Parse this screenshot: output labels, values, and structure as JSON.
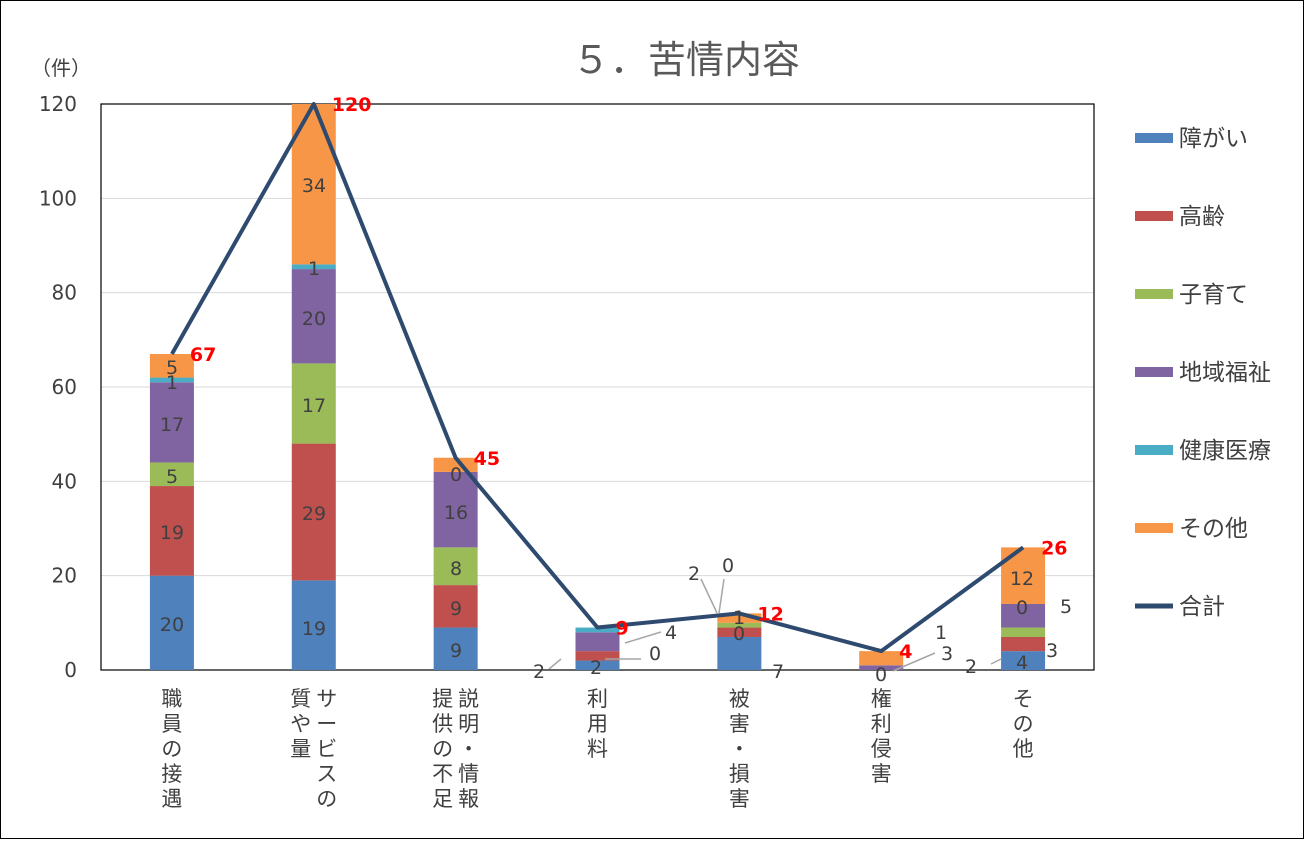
{
  "chart_data": {
    "type": "bar",
    "stacked": true,
    "title": "５．苦情内容",
    "ylabel": "（件）",
    "ylim": [
      0,
      120
    ],
    "yticks": [
      0,
      20,
      40,
      60,
      80,
      100,
      120
    ],
    "grid": true,
    "legend_position": "right",
    "categories": [
      "職員の接遇",
      "サービスの質や量",
      "説明・情報提供の不足",
      "利用料",
      "被害・損害",
      "権利侵害",
      "その他"
    ],
    "category_label_columns": [
      [
        "職員の接遇"
      ],
      [
        "サービスの",
        "質や量"
      ],
      [
        "説明・情報",
        "提供の不足"
      ],
      [
        "利用料"
      ],
      [
        "被害・損害"
      ],
      [
        "権利侵害"
      ],
      [
        "その他"
      ]
    ],
    "series": [
      {
        "name": "障がい",
        "color": "#4f81bd",
        "values": [
          20,
          19,
          9,
          2,
          7,
          0,
          4
        ]
      },
      {
        "name": "高齢",
        "color": "#c0504d",
        "values": [
          19,
          29,
          9,
          2,
          2,
          0,
          3
        ]
      },
      {
        "name": "子育て",
        "color": "#9bbb59",
        "values": [
          5,
          17,
          8,
          0,
          1,
          0,
          2
        ]
      },
      {
        "name": "地域福祉",
        "color": "#8064a2",
        "values": [
          17,
          20,
          16,
          4,
          0,
          1,
          5
        ]
      },
      {
        "name": "健康医療",
        "color": "#4bacc6",
        "values": [
          1,
          1,
          0,
          1,
          0,
          0,
          0
        ]
      },
      {
        "name": "その他",
        "color": "#f79646",
        "values": [
          5,
          34,
          3,
          0,
          2,
          3,
          12
        ]
      }
    ],
    "total": {
      "name": "合計",
      "color": "#2e4a6e",
      "label_color": "#ff0000",
      "values": [
        67,
        120,
        45,
        9,
        12,
        4,
        26
      ]
    },
    "data_labels": [
      {
        "text": "20"
      },
      {
        "text": "19"
      },
      {
        "text": "5"
      },
      {
        "text": "17"
      },
      {
        "text": "1"
      },
      {
        "text": "5"
      },
      {
        "text": "19"
      },
      {
        "text": "29"
      },
      {
        "text": "17"
      },
      {
        "text": "20"
      },
      {
        "text": "1"
      },
      {
        "text": "34"
      },
      {
        "text": "9"
      },
      {
        "text": "9"
      },
      {
        "text": "8"
      },
      {
        "text": "16"
      },
      {
        "text": "0"
      },
      {
        "text": "2"
      },
      {
        "text": "2"
      },
      {
        "text": "0"
      },
      {
        "text": "4"
      },
      {
        "text": "2"
      },
      {
        "text": "7"
      },
      {
        "text": "0"
      },
      {
        "text": "0"
      },
      {
        "text": "1"
      },
      {
        "text": "0"
      },
      {
        "text": "3"
      },
      {
        "text": "1"
      },
      {
        "text": "4"
      },
      {
        "text": "3"
      },
      {
        "text": "2"
      },
      {
        "text": "0"
      },
      {
        "text": "5"
      },
      {
        "text": "12"
      }
    ]
  }
}
